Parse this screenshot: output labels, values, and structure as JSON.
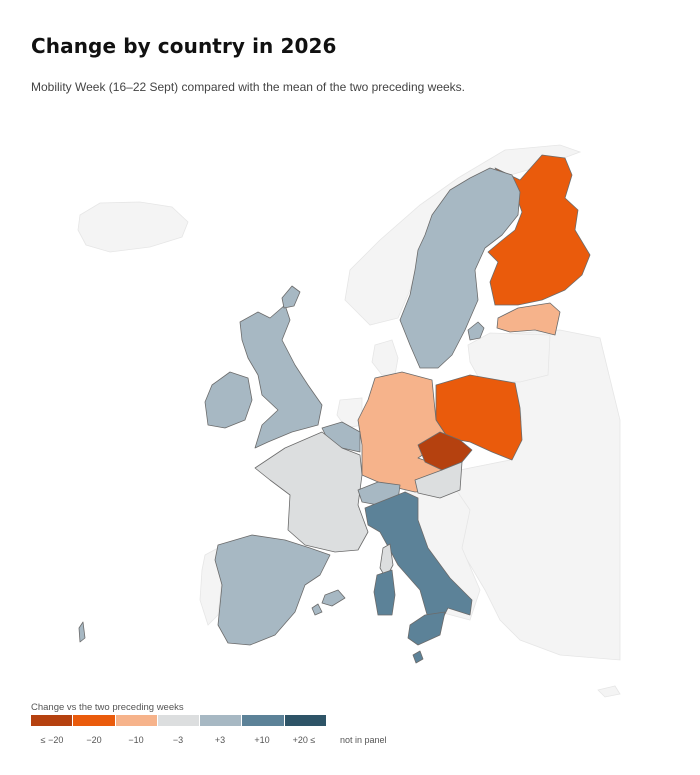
{
  "header": {
    "title": "Change by country in 2026",
    "subtitle": "Mobility Week (16–22 Sept) compared with the mean of the two preceding weeks."
  },
  "colors": {
    "c1": "#b5410f",
    "c2": "#ea5b0c",
    "c3": "#f6b38b",
    "c4": "#dcdedf",
    "c5": "#a7b8c3",
    "c6": "#5c8298",
    "c7": "#2e5467",
    "background_country": "#f4f4f4"
  },
  "legend": {
    "title": "Change vs the two preceding weeks",
    "bins": [
      {
        "label": "≤ −20",
        "color": "#b5410f"
      },
      {
        "label": "−20",
        "color": "#ea5b0c"
      },
      {
        "label": "−10",
        "color": "#f6b38b"
      },
      {
        "label": "−3",
        "color": "#dcdedf"
      },
      {
        "label": "+3",
        "color": "#a7b8c3"
      },
      {
        "label": "+10",
        "color": "#5c8298"
      },
      {
        "label": "+20 ≤",
        "color": "#2e5467"
      }
    ],
    "not_in_panel": "not in panel"
  },
  "countries": [
    {
      "name": "Finland",
      "bin": 2
    },
    {
      "name": "Estonia",
      "bin": 3
    },
    {
      "name": "Poland",
      "bin": 2
    },
    {
      "name": "Czechia",
      "bin": 1
    },
    {
      "name": "Germany",
      "bin": 3
    },
    {
      "name": "France",
      "bin": 4
    },
    {
      "name": "Austria",
      "bin": 4
    },
    {
      "name": "Corsica",
      "bin": 4
    },
    {
      "name": "Sweden",
      "bin": 5
    },
    {
      "name": "United Kingdom",
      "bin": 5
    },
    {
      "name": "Ireland",
      "bin": 5
    },
    {
      "name": "Spain",
      "bin": 5
    },
    {
      "name": "Belgium",
      "bin": 5
    },
    {
      "name": "Switzerland",
      "bin": 5
    },
    {
      "name": "Balearics",
      "bin": 5
    },
    {
      "name": "Azores",
      "bin": 5
    },
    {
      "name": "Italy",
      "bin": 6
    },
    {
      "name": "Sardinia",
      "bin": 6
    },
    {
      "name": "Sicily",
      "bin": 6
    }
  ]
}
